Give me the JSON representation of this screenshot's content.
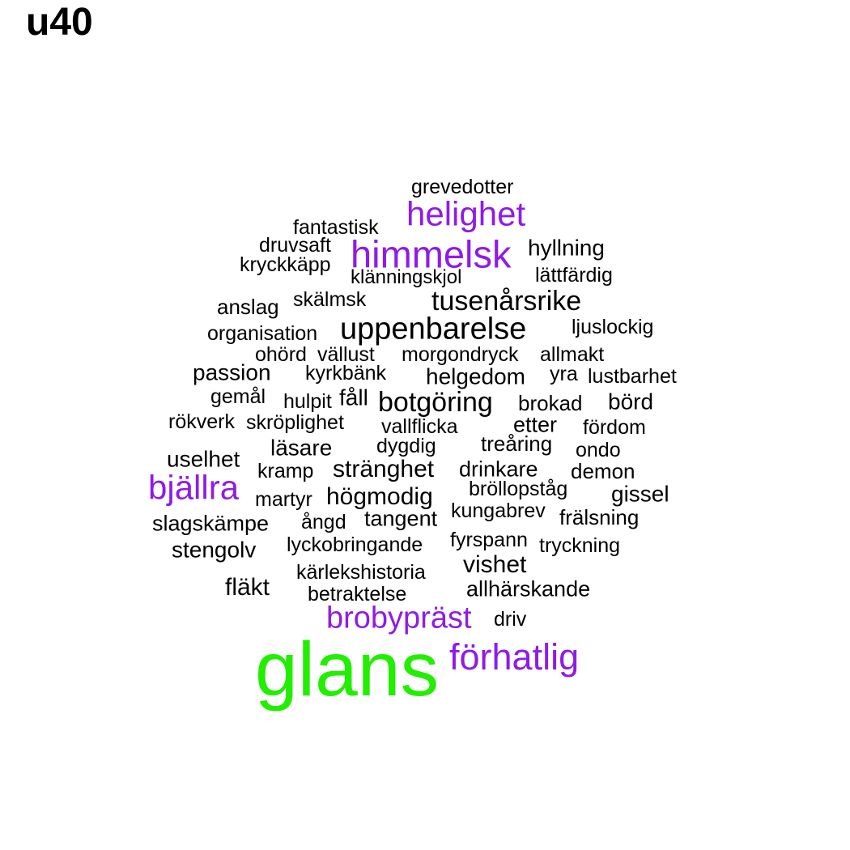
{
  "title": "u40",
  "colors": {
    "green": "#22ee00",
    "purple": "#8f1be8",
    "black": "#000000"
  },
  "words": [
    {
      "text": "grevedotter",
      "color": "black"
    },
    {
      "text": "helighet",
      "color": "purple"
    },
    {
      "text": "fantastisk",
      "color": "black"
    },
    {
      "text": "druvsaft",
      "color": "black"
    },
    {
      "text": "himmelsk",
      "color": "purple"
    },
    {
      "text": "hyllning",
      "color": "black"
    },
    {
      "text": "kryckkäpp",
      "color": "black"
    },
    {
      "text": "klänningskjol",
      "color": "black"
    },
    {
      "text": "lättfärdig",
      "color": "black"
    },
    {
      "text": "anslag",
      "color": "black"
    },
    {
      "text": "skälmsk",
      "color": "black"
    },
    {
      "text": "tusenårsrike",
      "color": "black"
    },
    {
      "text": "organisation",
      "color": "black"
    },
    {
      "text": "uppenbarelse",
      "color": "black"
    },
    {
      "text": "ljuslockig",
      "color": "black"
    },
    {
      "text": "ohörd",
      "color": "black"
    },
    {
      "text": "vällust",
      "color": "black"
    },
    {
      "text": "morgondryck",
      "color": "black"
    },
    {
      "text": "allmakt",
      "color": "black"
    },
    {
      "text": "passion",
      "color": "black"
    },
    {
      "text": "kyrkbänk",
      "color": "black"
    },
    {
      "text": "helgedom",
      "color": "black"
    },
    {
      "text": "yra",
      "color": "black"
    },
    {
      "text": "lustbarhet",
      "color": "black"
    },
    {
      "text": "gemål",
      "color": "black"
    },
    {
      "text": "hulpit",
      "color": "black"
    },
    {
      "text": "fåll",
      "color": "black"
    },
    {
      "text": "botgöring",
      "color": "black"
    },
    {
      "text": "brokad",
      "color": "black"
    },
    {
      "text": "börd",
      "color": "black"
    },
    {
      "text": "rökverk",
      "color": "black"
    },
    {
      "text": "skröplighet",
      "color": "black"
    },
    {
      "text": "vallflicka",
      "color": "black"
    },
    {
      "text": "etter",
      "color": "black"
    },
    {
      "text": "fördom",
      "color": "black"
    },
    {
      "text": "läsare",
      "color": "black"
    },
    {
      "text": "dygdig",
      "color": "black"
    },
    {
      "text": "treåring",
      "color": "black"
    },
    {
      "text": "ondo",
      "color": "black"
    },
    {
      "text": "uselhet",
      "color": "black"
    },
    {
      "text": "kramp",
      "color": "black"
    },
    {
      "text": "stränghet",
      "color": "black"
    },
    {
      "text": "drinkare",
      "color": "black"
    },
    {
      "text": "demon",
      "color": "black"
    },
    {
      "text": "bjällra",
      "color": "purple"
    },
    {
      "text": "bröllopståg",
      "color": "black"
    },
    {
      "text": "gissel",
      "color": "black"
    },
    {
      "text": "martyr",
      "color": "black"
    },
    {
      "text": "högmodig",
      "color": "black"
    },
    {
      "text": "kungabrev",
      "color": "black"
    },
    {
      "text": "slagskämpe",
      "color": "black"
    },
    {
      "text": "ångd",
      "color": "black"
    },
    {
      "text": "tangent",
      "color": "black"
    },
    {
      "text": "frälsning",
      "color": "black"
    },
    {
      "text": "fyrspann",
      "color": "black"
    },
    {
      "text": "stengolv",
      "color": "black"
    },
    {
      "text": "lyckobringande",
      "color": "black"
    },
    {
      "text": "tryckning",
      "color": "black"
    },
    {
      "text": "vishet",
      "color": "black"
    },
    {
      "text": "kärlekshistoria",
      "color": "black"
    },
    {
      "text": "fläkt",
      "color": "black"
    },
    {
      "text": "betraktelse",
      "color": "black"
    },
    {
      "text": "allhärskande",
      "color": "black"
    },
    {
      "text": "brobypräst",
      "color": "purple"
    },
    {
      "text": "driv",
      "color": "black"
    },
    {
      "text": "glans",
      "color": "green"
    },
    {
      "text": "förhatlig",
      "color": "purple"
    }
  ]
}
